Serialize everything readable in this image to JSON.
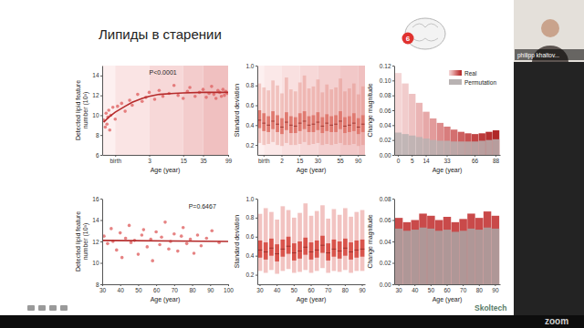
{
  "slide": {
    "title": "Липиды в старении",
    "badge": "6",
    "speaker": "philipp khaitov...",
    "logo": "Skoltech",
    "watermark": "zoom"
  },
  "chart_data": [
    {
      "type": "scatter",
      "x_label": "Age (year)",
      "y_label": "Detected lipid feature\nnumber (10³)",
      "annotation": {
        "text": "P<0.0001",
        "x": 3,
        "y": 14.1
      },
      "log": "x",
      "color": "#e06464",
      "x": [
        -0.6,
        -0.5,
        -0.45,
        -0.4,
        -0.35,
        -0.3,
        -0.25,
        -0.2,
        -0.1,
        0,
        0.1,
        0.3,
        0.5,
        0.8,
        1,
        1.5,
        2,
        2.5,
        3,
        4,
        5,
        6,
        8,
        10,
        12,
        15,
        18,
        20,
        25,
        30,
        35,
        40,
        45,
        50,
        55,
        60,
        65,
        70,
        75,
        80,
        85,
        90,
        95
      ],
      "values": [
        9.5,
        8.8,
        10.2,
        9.1,
        9.8,
        10.5,
        8.5,
        10.0,
        10.8,
        9.6,
        10.9,
        11.2,
        10.4,
        11.5,
        11.0,
        12.1,
        11.4,
        11.8,
        12.3,
        11.6,
        12.5,
        11.9,
        12.2,
        13.0,
        12.0,
        11.7,
        12.4,
        12.8,
        11.9,
        12.3,
        12.6,
        11.8,
        12.2,
        12.9,
        12.1,
        11.7,
        12.5,
        12.3,
        11.9,
        12.6,
        12.0,
        12.4,
        12.2
      ],
      "fit": {
        "color": "#b52b2b",
        "x": [
          -0.6,
          -0.3,
          0,
          0.5,
          1,
          2,
          3,
          5,
          10,
          15,
          35,
          60,
          99
        ],
        "values": [
          9.3,
          9.8,
          10.3,
          10.9,
          11.3,
          11.7,
          11.9,
          12.1,
          12.2,
          12.25,
          12.3,
          12.3,
          12.3
        ]
      },
      "xlim": [
        -0.7,
        99
      ],
      "xticks": [
        {
          "value": 0,
          "label": "birth"
        },
        3,
        15,
        35,
        99
      ],
      "ylim": [
        6,
        15
      ],
      "yticks": [
        6,
        8,
        10,
        12,
        14
      ]
    },
    {
      "type": "box",
      "x_label": "Age (year)",
      "y_label": "Standard deviation",
      "color": "#e07a70",
      "categories": [
        null,
        "birth",
        null,
        null,
        null,
        "2",
        null,
        null,
        null,
        "15",
        null,
        null,
        null,
        "30",
        null,
        null,
        null,
        null,
        "55",
        null,
        null,
        null,
        "90",
        null
      ],
      "low": [
        0.22,
        0.2,
        0.21,
        0.23,
        0.2,
        0.19,
        0.22,
        0.2,
        0.2,
        0.21,
        0.23,
        0.2,
        0.21,
        0.22,
        0.2,
        0.21,
        0.2,
        0.21,
        0.22,
        0.2,
        0.2,
        0.21,
        0.19,
        0.2
      ],
      "q1": [
        0.37,
        0.34,
        0.33,
        0.36,
        0.33,
        0.31,
        0.35,
        0.32,
        0.32,
        0.34,
        0.36,
        0.33,
        0.33,
        0.35,
        0.32,
        0.34,
        0.33,
        0.33,
        0.36,
        0.32,
        0.33,
        0.34,
        0.31,
        0.33
      ],
      "median": [
        0.45,
        0.42,
        0.4,
        0.44,
        0.41,
        0.38,
        0.43,
        0.4,
        0.39,
        0.42,
        0.44,
        0.4,
        0.41,
        0.43,
        0.39,
        0.42,
        0.4,
        0.41,
        0.44,
        0.39,
        0.4,
        0.42,
        0.38,
        0.41
      ],
      "q3": [
        0.55,
        0.52,
        0.49,
        0.54,
        0.5,
        0.47,
        0.53,
        0.49,
        0.48,
        0.52,
        0.54,
        0.49,
        0.5,
        0.53,
        0.48,
        0.51,
        0.49,
        0.5,
        0.54,
        0.48,
        0.49,
        0.52,
        0.47,
        0.5
      ],
      "high": [
        0.82,
        0.78,
        0.75,
        0.85,
        0.8,
        0.72,
        0.88,
        0.76,
        0.74,
        0.83,
        0.9,
        0.77,
        0.79,
        0.86,
        0.73,
        0.81,
        0.76,
        0.78,
        0.87,
        0.74,
        0.77,
        0.82,
        0.71,
        0.79
      ],
      "ylim": [
        0.1,
        1
      ],
      "yticks": [
        0.2,
        0.4,
        0.6,
        0.8,
        {
          "value": 1,
          "label": "1.0"
        }
      ]
    },
    {
      "type": "bar",
      "x_label": "Age (year)",
      "y_label": "Change magnitude",
      "legend": "upper right",
      "categories": [
        "0",
        null,
        "5",
        null,
        "14",
        null,
        null,
        "33",
        null,
        null,
        null,
        "66",
        null,
        null,
        "88"
      ],
      "series": [
        {
          "name": "Real",
          "colors": [
            "#f4d6d6",
            "#f1cccc",
            "#eec2c2",
            "#eab5b5",
            "#e6a8a8",
            "#e29b9b",
            "#dd8c8c",
            "#d87d7d",
            "#d36f6f",
            "#cd6060",
            "#c85252",
            "#c24545",
            "#bc3a3a",
            "#b63030",
            "#b02828"
          ],
          "values": [
            0.11,
            0.096,
            0.082,
            0.07,
            0.058,
            0.049,
            0.043,
            0.038,
            0.034,
            0.031,
            0.029,
            0.028,
            0.029,
            0.031,
            0.033
          ]
        },
        {
          "name": "Permutation",
          "color": "#b8b2b2",
          "values": [
            0.03,
            0.028,
            0.026,
            0.024,
            0.022,
            0.02,
            0.019,
            0.019,
            0.018,
            0.018,
            0.018,
            0.018,
            0.019,
            0.02,
            0.021
          ]
        }
      ],
      "ylim": [
        0,
        0.12
      ],
      "yticks": [
        {
          "value": 0,
          "label": "0.00"
        },
        0.02,
        0.04,
        0.06,
        0.08,
        {
          "value": 0.1,
          "label": "0.10"
        },
        0.12
      ]
    },
    {
      "type": "scatter",
      "x_label": "Age (year)",
      "y_label": "Detected lipid feature\nnumber (10³)",
      "annotation": {
        "text": "P=0.6467",
        "x": 78,
        "y": 15.1
      },
      "color": "#e06464",
      "x": [
        31,
        33,
        35,
        36,
        38,
        40,
        41,
        43,
        45,
        46,
        48,
        50,
        52,
        53,
        55,
        57,
        58,
        60,
        62,
        63,
        65,
        67,
        68,
        70,
        72,
        74,
        75,
        77,
        79,
        81,
        83,
        85,
        88,
        91,
        95
      ],
      "values": [
        12.5,
        11.8,
        13.2,
        12.0,
        11.2,
        12.8,
        10.5,
        12.3,
        13.5,
        11.9,
        12.1,
        10.8,
        12.6,
        13.1,
        11.5,
        12.2,
        10.2,
        12.9,
        11.7,
        12.4,
        13.8,
        11.3,
        12.0,
        12.7,
        11.1,
        12.5,
        13.3,
        11.8,
        12.2,
        10.9,
        12.6,
        11.6,
        12.3,
        13.0,
        11.9
      ],
      "fit": {
        "color": "#b52b2b",
        "x": [
          30,
          100
        ],
        "values": [
          12.1,
          12.0
        ]
      },
      "xlim": [
        30,
        100
      ],
      "xticks": [
        30,
        40,
        50,
        60,
        70,
        80,
        90,
        100
      ],
      "ylim": [
        8,
        16
      ],
      "yticks": [
        8,
        10,
        12,
        14,
        16
      ]
    },
    {
      "type": "box",
      "x_label": "Age (year)",
      "y_label": "Standard deviation",
      "color": "#d9544c",
      "categories": [
        "30",
        null,
        null,
        "40",
        null,
        null,
        "50",
        null,
        null,
        "60",
        null,
        null,
        "70",
        null,
        null,
        "80",
        null,
        null,
        "90"
      ],
      "low": [
        0.24,
        0.22,
        0.25,
        0.21,
        0.24,
        0.26,
        0.22,
        0.23,
        0.25,
        0.22,
        0.24,
        0.27,
        0.22,
        0.24,
        0.23,
        0.25,
        0.22,
        0.24,
        0.24
      ],
      "q1": [
        0.38,
        0.36,
        0.4,
        0.34,
        0.39,
        0.42,
        0.35,
        0.37,
        0.41,
        0.36,
        0.38,
        0.43,
        0.35,
        0.39,
        0.37,
        0.4,
        0.36,
        0.38,
        0.39
      ],
      "median": [
        0.46,
        0.44,
        0.48,
        0.42,
        0.47,
        0.5,
        0.43,
        0.45,
        0.49,
        0.44,
        0.46,
        0.51,
        0.43,
        0.47,
        0.45,
        0.48,
        0.44,
        0.46,
        0.47
      ],
      "q3": [
        0.56,
        0.54,
        0.58,
        0.52,
        0.57,
        0.6,
        0.53,
        0.55,
        0.59,
        0.54,
        0.56,
        0.61,
        0.53,
        0.57,
        0.55,
        0.58,
        0.54,
        0.56,
        0.57
      ],
      "high": [
        0.84,
        0.9,
        0.86,
        0.78,
        0.92,
        0.88,
        0.8,
        0.85,
        0.95,
        0.82,
        0.87,
        0.93,
        0.79,
        0.89,
        0.83,
        0.9,
        0.81,
        0.86,
        0.88
      ],
      "ylim": [
        0.1,
        1
      ],
      "yticks": [
        0.2,
        0.4,
        0.6,
        0.8,
        {
          "value": 1,
          "label": "1.0"
        }
      ]
    },
    {
      "type": "bar",
      "x_label": "Age (year)",
      "y_label": "Change magnitude",
      "categories": [
        "30",
        null,
        "40",
        null,
        "50",
        null,
        "60",
        null,
        "70",
        null,
        "80",
        null,
        "90"
      ],
      "series": [
        {
          "color": "#c94a4a",
          "values": [
            0.062,
            0.058,
            0.06,
            0.066,
            0.064,
            0.06,
            0.063,
            0.058,
            0.061,
            0.066,
            0.062,
            0.068,
            0.064
          ]
        },
        {
          "color": "#aaa4a4",
          "values": [
            0.052,
            0.05,
            0.051,
            0.053,
            0.052,
            0.05,
            0.051,
            0.049,
            0.05,
            0.052,
            0.051,
            0.053,
            0.052
          ]
        }
      ],
      "ylim": [
        0,
        0.08
      ],
      "yticks": [
        {
          "value": 0,
          "label": "0.00"
        },
        0.02,
        0.04,
        0.06,
        0.08
      ]
    }
  ]
}
